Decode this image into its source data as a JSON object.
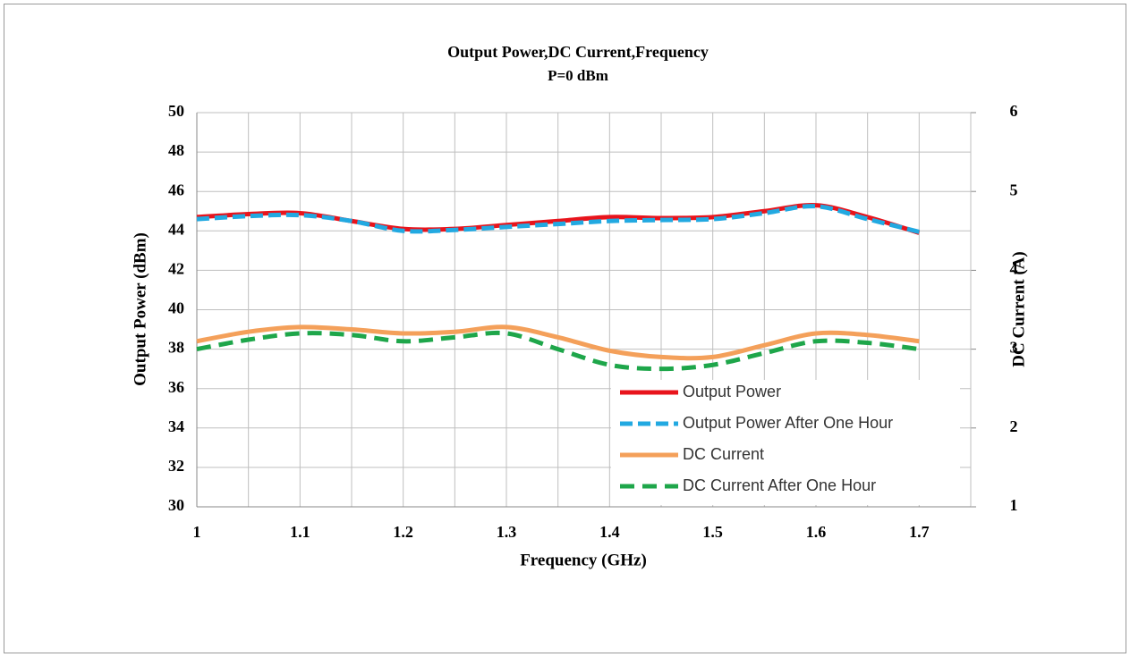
{
  "chart_data": {
    "type": "line",
    "title": "Output  Power,DC Current,Frequency",
    "subtitle": "P=0 dBm",
    "xlabel": "Frequency (GHz)",
    "ylabel": "Output  Power (dBm)",
    "y2label": "DC Current (A)",
    "x": [
      1,
      1.05,
      1.1,
      1.15,
      1.2,
      1.25,
      1.3,
      1.35,
      1.4,
      1.45,
      1.5,
      1.55,
      1.6,
      1.65,
      1.7
    ],
    "xlim": [
      1,
      1.75
    ],
    "xticks": [
      1,
      1.1,
      1.2,
      1.3,
      1.4,
      1.5,
      1.6,
      1.7
    ],
    "xgrid": [
      1.05,
      1.15,
      1.25,
      1.35,
      1.45,
      1.55,
      1.65,
      1.75
    ],
    "ylim": [
      30,
      50
    ],
    "yticks": [
      30,
      32,
      34,
      36,
      38,
      40,
      42,
      44,
      46,
      48,
      50
    ],
    "y2lim": [
      1,
      6
    ],
    "y2ticks": [
      1,
      2,
      3,
      4,
      5,
      6
    ],
    "grid": true,
    "legend": "lower right",
    "series": [
      {
        "name": "Output Power",
        "color": "#e8141c",
        "dash": "solid",
        "values": [
          44.7,
          44.85,
          44.9,
          44.5,
          44.1,
          44.1,
          44.3,
          44.5,
          44.7,
          44.65,
          44.7,
          45.0,
          45.3,
          44.7,
          43.9
        ]
      },
      {
        "name": "Output Power After One Hour",
        "color": "#22a9e1",
        "dash": "dashed",
        "values": [
          44.6,
          44.75,
          44.8,
          44.5,
          44.0,
          44.05,
          44.2,
          44.35,
          44.5,
          44.55,
          44.6,
          44.9,
          45.25,
          44.6,
          43.95
        ]
      },
      {
        "name": "DC Current",
        "color": "#f4a05a",
        "dash": "solid",
        "axis": "y2",
        "values": [
          3.1,
          3.22,
          3.28,
          3.25,
          3.2,
          3.22,
          3.28,
          3.15,
          2.98,
          2.9,
          2.9,
          3.05,
          3.2,
          3.18,
          3.1
        ]
      },
      {
        "name": "DC Current After One Hour",
        "color": "#1ea64a",
        "dash": "dashed",
        "axis": "y2",
        "values": [
          3.0,
          3.12,
          3.2,
          3.18,
          3.1,
          3.15,
          3.2,
          3.0,
          2.8,
          2.75,
          2.8,
          2.95,
          3.1,
          3.08,
          3.0
        ]
      }
    ]
  }
}
